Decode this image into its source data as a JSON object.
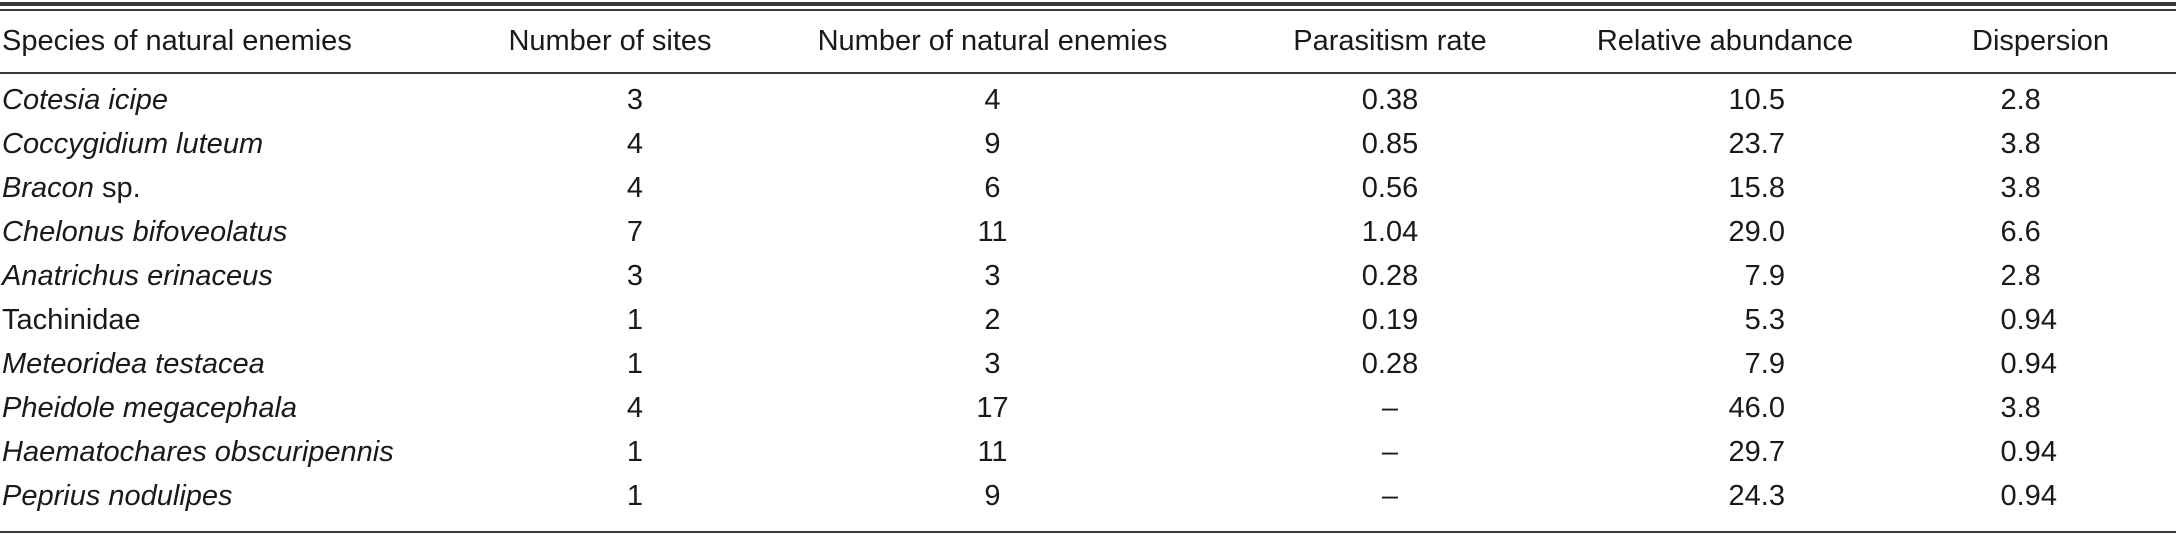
{
  "table": {
    "headers": [
      "Species of natural enemies",
      "Number of sites",
      "Number of natural enemies",
      "Parasitism rate",
      "Relative abundance",
      "Dispersion"
    ],
    "rows": [
      {
        "species_italic": "Cotesia icipe",
        "species_plain": "",
        "sites": "3",
        "enemies": "4",
        "parasitism": "0.38",
        "abundance": "10.5",
        "dispersion": "2.8"
      },
      {
        "species_italic": "Coccygidium luteum",
        "species_plain": "",
        "sites": "4",
        "enemies": "9",
        "parasitism": "0.85",
        "abundance": "23.7",
        "dispersion": "3.8"
      },
      {
        "species_italic": "Bracon",
        "species_plain": " sp.",
        "sites": "4",
        "enemies": "6",
        "parasitism": "0.56",
        "abundance": "15.8",
        "dispersion": "3.8"
      },
      {
        "species_italic": "Chelonus bifoveolatus",
        "species_plain": "",
        "sites": "7",
        "enemies": "11",
        "parasitism": "1.04",
        "abundance": "29.0",
        "dispersion": "6.6"
      },
      {
        "species_italic": "Anatrichus erinaceus",
        "species_plain": "",
        "sites": "3",
        "enemies": "3",
        "parasitism": "0.28",
        "abundance": "7.9",
        "dispersion": "2.8"
      },
      {
        "species_italic": "",
        "species_plain": "Tachinidae",
        "sites": "1",
        "enemies": "2",
        "parasitism": "0.19",
        "abundance": "5.3",
        "dispersion": "0.94"
      },
      {
        "species_italic": "Meteoridea testacea",
        "species_plain": "",
        "sites": "1",
        "enemies": "3",
        "parasitism": "0.28",
        "abundance": "7.9",
        "dispersion": "0.94"
      },
      {
        "species_italic": "Pheidole megacephala",
        "species_plain": "",
        "sites": "4",
        "enemies": "17",
        "parasitism": "–",
        "abundance": "46.0",
        "dispersion": "3.8"
      },
      {
        "species_italic": "Haematochares obscuripennis",
        "species_plain": "",
        "sites": "1",
        "enemies": "11",
        "parasitism": "–",
        "abundance": "29.7",
        "dispersion": "0.94"
      },
      {
        "species_italic": "Peprius nodulipes",
        "species_plain": "",
        "sites": "1",
        "enemies": "9",
        "parasitism": "–",
        "abundance": "24.3",
        "dispersion": "0.94"
      }
    ]
  }
}
